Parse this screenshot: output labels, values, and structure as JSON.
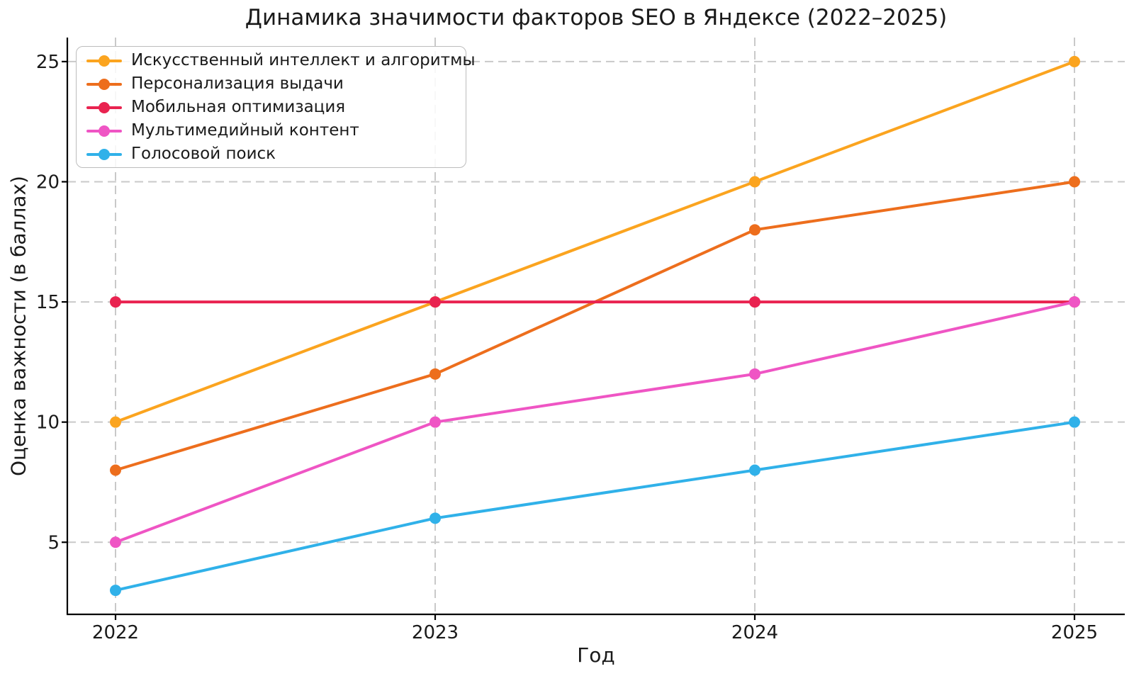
{
  "chart_data": {
    "type": "line",
    "title": "Динамика значимости факторов SEO в Яндексе (2022–2025)",
    "xlabel": "Год",
    "ylabel": "Оценка важности (в баллах)",
    "categories": [
      "2022",
      "2023",
      "2024",
      "2025"
    ],
    "series": [
      {
        "name": "Искусственный интеллект и алгоритмы",
        "color": "#FBA41F",
        "values": [
          10,
          15,
          20,
          25
        ]
      },
      {
        "name": "Персонализация выдачи",
        "color": "#ED6E1D",
        "values": [
          8,
          12,
          18,
          20
        ]
      },
      {
        "name": "Мобильная оптимизация",
        "color": "#E92350",
        "values": [
          15,
          15,
          15,
          15
        ]
      },
      {
        "name": "Мультимедийный контент",
        "color": "#EF55C4",
        "values": [
          5,
          10,
          12,
          15
        ]
      },
      {
        "name": "Голосовой поиск",
        "color": "#30B1E9",
        "values": [
          3,
          6,
          8,
          10
        ]
      }
    ],
    "yticks": [
      5,
      10,
      15,
      20,
      25
    ],
    "ylim": [
      2,
      26
    ],
    "grid": true,
    "legend_position": "upper left"
  },
  "style": {
    "background": "#ffffff",
    "grid_color": "#c9c9c9",
    "spine_color": "#000000",
    "tick_color": "#000000",
    "text_color": "#1a1a1a"
  }
}
